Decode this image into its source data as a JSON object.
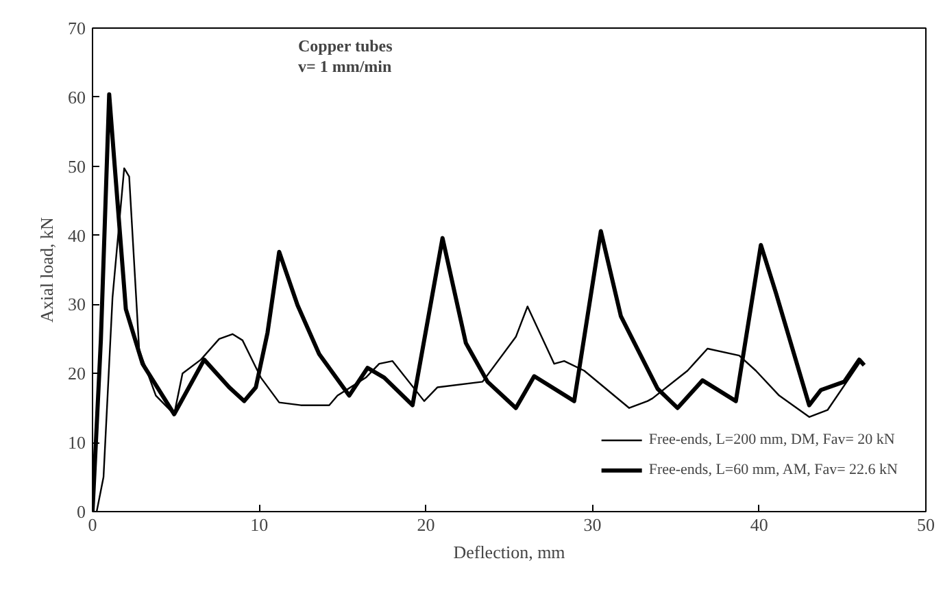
{
  "chart_data": {
    "type": "line",
    "xlabel": "Deflection, mm",
    "ylabel": "Axial load, kN",
    "annotations": [
      "Copper tubes",
      "v= 1 mm/min"
    ],
    "xlim": [
      0,
      50
    ],
    "ylim": [
      0,
      70
    ],
    "xticks": [
      0,
      10,
      20,
      30,
      40,
      50
    ],
    "yticks": [
      0,
      10,
      20,
      30,
      40,
      50,
      60,
      70
    ],
    "grid": false,
    "legend": "bottom right",
    "marker": "none",
    "line_style": "solid",
    "series": [
      {
        "name": "Free-ends, L=200 mm, DM, Fav= 20 kN",
        "color": "#000000",
        "x": [
          0.25,
          0.66,
          1.2,
          1.9,
          2.2,
          2.8,
          3.8,
          4.9,
          5.4,
          6.5,
          7.6,
          8.4,
          9.0,
          10.1,
          11.2,
          12.5,
          14.2,
          14.7,
          16.4,
          17.2,
          18.0,
          19.9,
          20.7,
          23.4,
          25.4,
          26.1,
          27.7,
          28.3,
          29.5,
          32.2,
          33.3,
          33.6,
          35.7,
          36.9,
          38.8,
          39.8,
          41.2,
          43.0,
          44.1,
          46.1
        ],
        "values": [
          0,
          5,
          31,
          49.7,
          48.5,
          23.4,
          16.8,
          14.1,
          20,
          22,
          25,
          25.7,
          24.8,
          19.4,
          15.8,
          15.4,
          15.4,
          16.8,
          19.4,
          21.4,
          21.8,
          16,
          18,
          18.8,
          25.3,
          29.7,
          21.4,
          21.8,
          20.4,
          15,
          16,
          16.4,
          20.4,
          23.6,
          22.6,
          20.4,
          16.8,
          13.7,
          14.7,
          21.8
        ]
      },
      {
        "name": "Free-ends, L=60 mm, AM, Fav= 22.6 kN",
        "color": "#000000",
        "x": [
          0,
          0.5,
          1.0,
          1.3,
          2.0,
          3.0,
          4.9,
          6.7,
          8.2,
          9.1,
          9.8,
          10.5,
          11.2,
          12.3,
          13.6,
          15.4,
          16.5,
          17.5,
          19.2,
          21.0,
          22.4,
          23.7,
          25.4,
          26.5,
          28.9,
          30.5,
          31.7,
          33.9,
          35.1,
          36.6,
          38.6,
          40.1,
          41.0,
          43.0,
          43.7,
          45.1,
          46.0,
          46.3
        ],
        "values": [
          0,
          24.8,
          60.4,
          51,
          29.3,
          21.4,
          14.1,
          22,
          18,
          16,
          18,
          25.9,
          37.6,
          29.9,
          22.8,
          16.8,
          20.8,
          19.4,
          15.4,
          39.6,
          24.4,
          18.8,
          15,
          19.6,
          16,
          40.6,
          28.3,
          17.8,
          15,
          19,
          16,
          38.6,
          31.7,
          15.4,
          17.6,
          18.8,
          22,
          21.2
        ]
      }
    ]
  }
}
